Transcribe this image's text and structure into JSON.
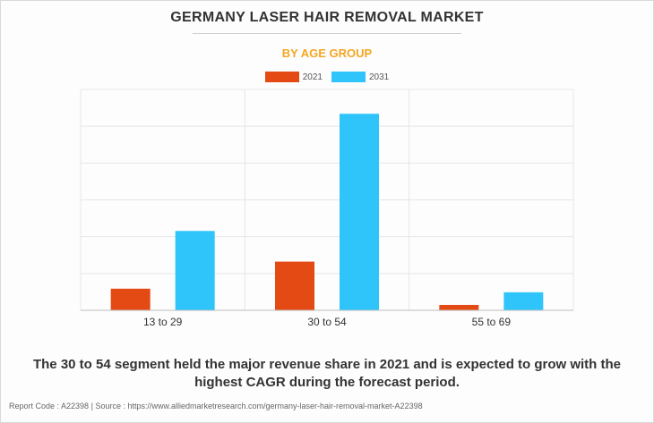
{
  "colors": {
    "accent": "#f5a623",
    "series_2021": "#e34a14",
    "series_2031": "#2fc5fb"
  },
  "footer": {
    "report_code": "Report Code : A22398",
    "separator": "|",
    "source": "Source : https://www.alliedmarketresearch.com/germany-laser-hair-removal-market-A22398"
  },
  "caption": "The 30 to 54 segment held the major revenue share in 2021 and is expected to grow with the highest CAGR during the forecast period.",
  "chart_data": {
    "type": "bar",
    "title": "GERMANY LASER HAIR REMOVAL MARKET",
    "subtitle": "BY AGE GROUP",
    "xlabel": "",
    "ylabel": "",
    "categories": [
      "13 to 29",
      "30 to 54",
      "55 to 69"
    ],
    "series": [
      {
        "name": "2021",
        "values": [
          24,
          54,
          6
        ]
      },
      {
        "name": "2031",
        "values": [
          88,
          218,
          20
        ]
      }
    ],
    "ylim": [
      0,
      245
    ],
    "y_tick_labels_shown": false,
    "grid": true,
    "legend": "top-center"
  }
}
